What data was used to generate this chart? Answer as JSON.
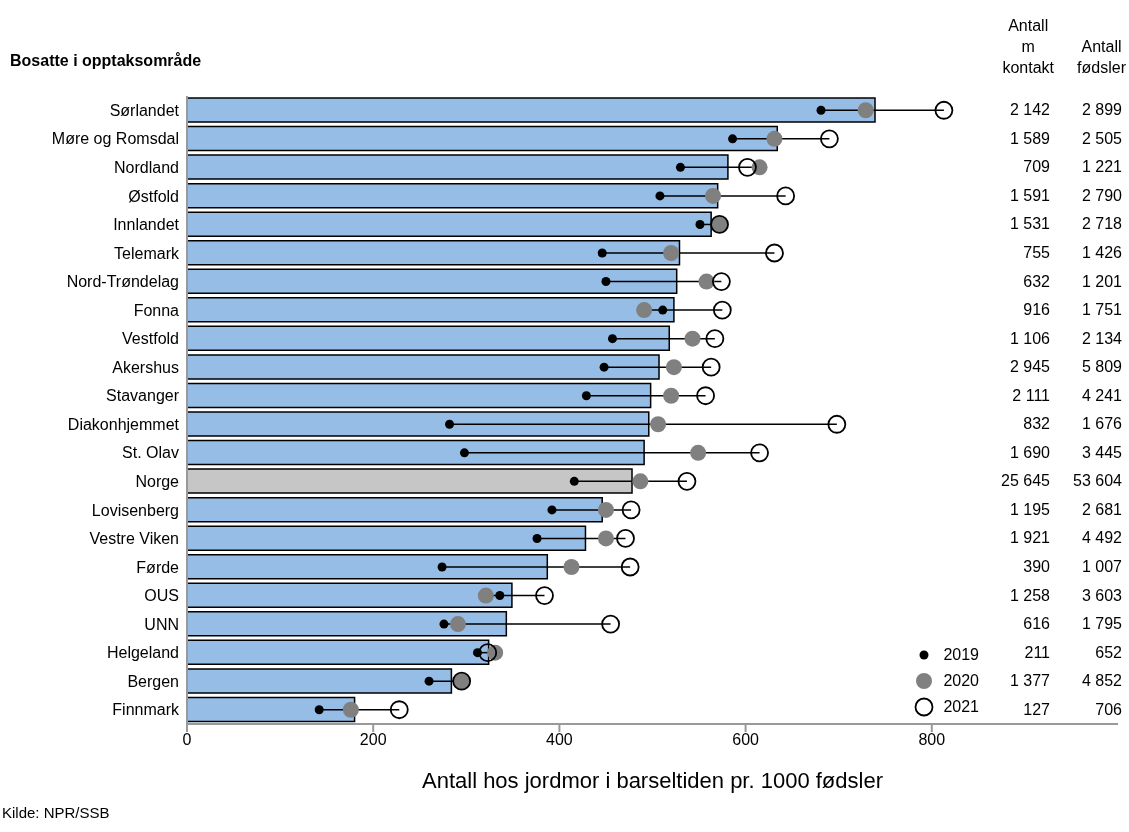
{
  "chart_data": {
    "type": "bar",
    "orientation": "horizontal",
    "ylabel": "Bosatte i opptaksområde",
    "xlabel": "Antall hos jordmor i barseltiden pr. 1000 fødsler",
    "categories": [
      "Sørlandet",
      "Møre og Romsdal",
      "Nordland",
      "Østfold",
      "Innlandet",
      "Telemark",
      "Nord-Trøndelag",
      "Fonna",
      "Vestfold",
      "Akershus",
      "Stavanger",
      "Diakonhjemmet",
      "St. Olav",
      "Norge",
      "Lovisenberg",
      "Vestre Viken",
      "Førde",
      "OUS",
      "UNN",
      "Helgeland",
      "Bergen",
      "Finnmark"
    ],
    "series": [
      {
        "colors": [
          "#95bde6",
          "#95bde6",
          "#95bde6",
          "#95bde6",
          "#95bde6",
          "#95bde6",
          "#95bde6",
          "#95bde6",
          "#95bde6",
          "#95bde6",
          "#95bde6",
          "#95bde6",
          "#95bde6",
          "#c6c6c6",
          "#95bde6",
          "#95bde6",
          "#95bde6",
          "#95bde6",
          "#95bde6",
          "#95bde6",
          "#95bde6",
          "#95bde6"
        ],
        "values": [
          739,
          634,
          581,
          570,
          563,
          529,
          526,
          523,
          518,
          507,
          498,
          496,
          491,
          478,
          446,
          428,
          387,
          349,
          343,
          324,
          284,
          180
        ]
      },
      {
        "type": "scatter",
        "name": "2019",
        "color": "#000000",
        "values": [
          681,
          586,
          530,
          508,
          551,
          446,
          450,
          511,
          457,
          448,
          429,
          282,
          298,
          416,
          392,
          376,
          274,
          336,
          276,
          312,
          260,
          142
        ]
      },
      {
        "type": "scatter",
        "name": "2020",
        "color": "#808080",
        "values": [
          729,
          631,
          615,
          565,
          572,
          520,
          558,
          491,
          543,
          523,
          520,
          506,
          549,
          487,
          450,
          450,
          413,
          321,
          291,
          331,
          295,
          176
        ]
      },
      {
        "type": "scatter",
        "name": "2021",
        "color": "#000000",
        "values": [
          813,
          690,
          602,
          643,
          572,
          631,
          574,
          575,
          567,
          563,
          557,
          698,
          615,
          537,
          477,
          471,
          476,
          384,
          455,
          323,
          295,
          228
        ]
      }
    ],
    "xlim": [
      0,
      1000
    ],
    "xticks": [
      0,
      200,
      400,
      600,
      800
    ],
    "grid": false,
    "legend": "bottom right",
    "marker": "circle",
    "annotations": [
      "Kilde: NPR/SSB",
      "Antall\nm\nkontakt",
      "Antall\nfødsler",
      "2 142",
      "2 899",
      "1 589",
      "2 505",
      "709",
      "1 221",
      "1 591",
      "2 790",
      "1 531",
      "2 718",
      "755",
      "1 426",
      "632",
      "1 201",
      "916",
      "1 751",
      "1 106",
      "2 134",
      "2 945",
      "5 809",
      "2 111",
      "4 241",
      "832",
      "1 676",
      "1 690",
      "3 445",
      "25 645",
      "53 604",
      "1 195",
      "2 681",
      "1 921",
      "4 492",
      "390",
      "1 007",
      "1 258",
      "3 603",
      "616",
      "1 795",
      "211",
      "652",
      "1 377",
      "4 852",
      "127",
      "706"
    ]
  }
}
